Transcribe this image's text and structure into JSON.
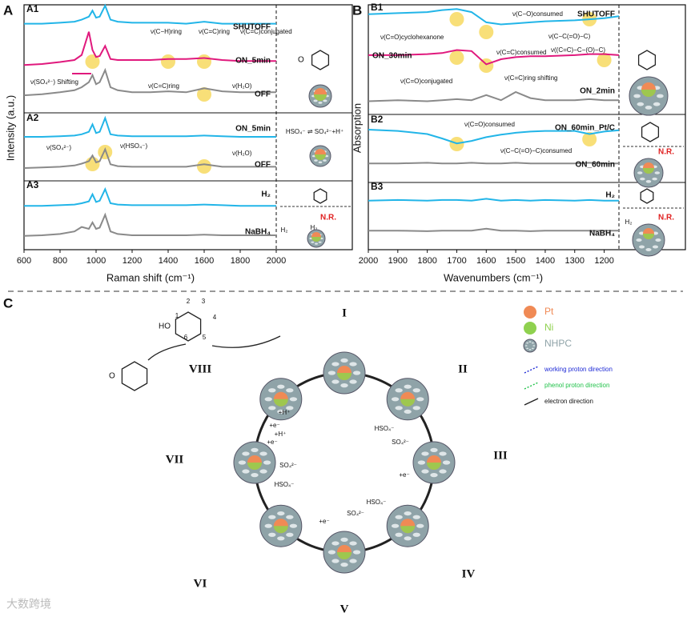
{
  "chart_data": [
    {
      "type": "line",
      "label": "A1",
      "panel": "A",
      "y_label": "Intensity (a.u.)",
      "xlim": [
        600,
        2000
      ],
      "ylim": [
        0,
        10
      ],
      "x": [
        600,
        700,
        800,
        880,
        920,
        960,
        980,
        1000,
        1020,
        1050,
        1080,
        1120,
        1200,
        1300,
        1400,
        1500,
        1600,
        1700,
        1800,
        1900,
        2000
      ],
      "series": [
        {
          "name": "SHUTOFF",
          "color": "#22b5e8",
          "values": [
            8.6,
            8.6,
            8.7,
            8.8,
            9.0,
            9.3,
            9.9,
            9.2,
            9.3,
            10.4,
            9.0,
            8.8,
            8.7,
            8.7,
            8.7,
            8.6,
            8.8,
            8.6,
            8.6,
            8.6,
            8.6
          ]
        },
        {
          "name": "ON_5min",
          "color": "#e0197d",
          "values": [
            4.5,
            4.6,
            4.8,
            5.0,
            5.5,
            7.8,
            6.0,
            5.3,
            5.4,
            6.4,
            5.1,
            5.0,
            5.0,
            5.0,
            5.1,
            5.1,
            5.2,
            5.0,
            4.9,
            4.9,
            4.9
          ]
        },
        {
          "name": "OFF",
          "color": "#8a8a8a",
          "values": [
            1.5,
            1.6,
            1.8,
            2.0,
            2.3,
            2.8,
            3.5,
            2.6,
            2.8,
            4.0,
            2.3,
            2.0,
            1.8,
            1.8,
            1.9,
            1.8,
            2.2,
            1.9,
            1.8,
            1.8,
            1.8
          ]
        }
      ],
      "annotations": [
        "ν(C−H)ring",
        "ν(C=C)ring",
        "ν(C=C)conjugated",
        "ν(SO₄²⁻) Shifting",
        "ν(C=C)ring",
        "ν(H₂O)"
      ],
      "box_labels": []
    },
    {
      "type": "line",
      "label": "A2",
      "panel": "A",
      "xlim": [
        600,
        2000
      ],
      "ylim": [
        0,
        10
      ],
      "x": [
        600,
        700,
        800,
        880,
        920,
        960,
        980,
        1000,
        1020,
        1050,
        1080,
        1120,
        1200,
        1300,
        1400,
        1500,
        1600,
        1700,
        1800,
        1900,
        2000
      ],
      "series": [
        {
          "name": "ON_5min",
          "color": "#22b5e8",
          "values": [
            6.8,
            6.8,
            6.9,
            7.0,
            7.2,
            7.6,
            8.8,
            7.4,
            7.6,
            9.8,
            7.2,
            7.0,
            6.9,
            6.9,
            6.9,
            6.9,
            7.0,
            6.9,
            6.8,
            6.8,
            6.8
          ]
        },
        {
          "name": "OFF",
          "color": "#8a8a8a",
          "values": [
            1.8,
            1.9,
            2.0,
            2.2,
            2.5,
            2.9,
            3.8,
            2.7,
            2.9,
            4.8,
            2.4,
            2.1,
            2.0,
            2.0,
            2.0,
            2.0,
            2.4,
            2.0,
            2.0,
            2.0,
            2.0
          ]
        }
      ],
      "annotations": [
        "ν(SO₄²⁻)",
        "ν(HSO₄⁻)",
        "ν(H₂O)"
      ],
      "box_labels": [
        "HSO₄⁻ ⇌ SO₄²⁻+H⁺"
      ]
    },
    {
      "type": "line",
      "label": "A3",
      "panel": "A",
      "xlim": [
        600,
        2000
      ],
      "ylim": [
        0,
        10
      ],
      "xticks": [
        600,
        800,
        1000,
        1200,
        1400,
        1600,
        1800,
        2000
      ],
      "x_label": "Raman shift (cm⁻¹)",
      "x": [
        600,
        700,
        800,
        880,
        920,
        960,
        980,
        1000,
        1020,
        1050,
        1080,
        1120,
        1200,
        1300,
        1400,
        1500,
        1600,
        1700,
        1800,
        1900,
        2000
      ],
      "series": [
        {
          "name": "H₂",
          "color": "#22b5e8",
          "values": [
            6.6,
            6.6,
            6.7,
            6.8,
            7.0,
            7.3,
            8.4,
            7.2,
            7.4,
            9.2,
            7.0,
            6.8,
            6.7,
            6.7,
            6.7,
            6.7,
            6.8,
            6.7,
            6.6,
            6.6,
            6.6
          ]
        },
        {
          "name": "NaBH₄",
          "color": "#8a8a8a",
          "values": [
            1.9,
            2.0,
            2.2,
            2.6,
            3.3,
            3.0,
            4.0,
            3.0,
            3.2,
            5.2,
            2.6,
            2.2,
            2.0,
            2.0,
            2.0,
            2.0,
            2.1,
            2.0,
            2.0,
            2.0,
            2.0
          ]
        }
      ],
      "annotations": [],
      "box_labels": [
        "N.R.",
        "H₂",
        "H₂"
      ]
    },
    {
      "type": "line",
      "label": "B1",
      "panel": "B",
      "y_label": "Absorption",
      "xlim": [
        2000,
        1150
      ],
      "ylim": [
        0,
        10
      ],
      "x": [
        2000,
        1900,
        1800,
        1750,
        1700,
        1650,
        1600,
        1550,
        1500,
        1450,
        1400,
        1300,
        1250,
        1200,
        1150
      ],
      "series": [
        {
          "name": "SHUTOFF",
          "color": "#22b5e8",
          "values": [
            9.4,
            9.5,
            9.6,
            9.8,
            9.9,
            9.6,
            8.6,
            8.4,
            8.5,
            8.6,
            8.7,
            8.8,
            8.9,
            9.0,
            9.2
          ]
        },
        {
          "name": "ON_30min",
          "color": "#e0197d",
          "values": [
            5.4,
            5.4,
            5.5,
            5.6,
            5.9,
            5.8,
            4.5,
            5.0,
            5.2,
            5.3,
            5.3,
            5.4,
            5.5,
            5.5,
            5.4
          ]
        },
        {
          "name": "ON_2min",
          "color": "#8a8a8a",
          "values": [
            0.9,
            1.0,
            0.9,
            1.0,
            1.1,
            1.0,
            1.5,
            1.0,
            1.8,
            1.2,
            1.0,
            1.0,
            1.1,
            1.0,
            1.0
          ]
        }
      ],
      "annotations": [
        "ν(C−O)consumed",
        "ν(C=O)cyclohexanone",
        "ν(C−C(=O)−C)",
        "ν(C=C)consumed",
        "ν((C=C)−C−(O)−C)",
        "ν(C=O)conjugated",
        "ν(C=C)ring shifting"
      ],
      "box_labels": []
    },
    {
      "type": "line",
      "label": "B2",
      "panel": "B",
      "xlim": [
        2000,
        1150
      ],
      "ylim": [
        0,
        10
      ],
      "x": [
        2000,
        1900,
        1800,
        1750,
        1700,
        1650,
        1600,
        1550,
        1500,
        1450,
        1400,
        1300,
        1250,
        1200,
        1150
      ],
      "series": [
        {
          "name": "ON_60min_Pt/C",
          "color": "#22b5e8",
          "values": [
            8.2,
            8.0,
            7.5,
            6.8,
            6.0,
            6.4,
            7.0,
            7.4,
            7.7,
            7.9,
            8.0,
            8.0,
            7.5,
            7.9,
            8.1
          ]
        },
        {
          "name": "ON_60min",
          "color": "#8a8a8a",
          "values": [
            2.8,
            2.8,
            2.9,
            2.8,
            2.8,
            2.9,
            2.8,
            2.8,
            2.9,
            2.8,
            2.8,
            2.8,
            2.9,
            2.8,
            2.8
          ]
        }
      ],
      "annotations": [
        "ν(C=O)consumed",
        "ν(C−C(=O)−C)consumed"
      ],
      "box_labels": [
        "N.R."
      ]
    },
    {
      "type": "line",
      "label": "B3",
      "panel": "B",
      "xlim": [
        2000,
        1150
      ],
      "ylim": [
        0,
        10
      ],
      "xticks": [
        2000,
        1900,
        1800,
        1700,
        1600,
        1500,
        1400,
        1300,
        1200
      ],
      "x_label": "Wavenumbers (cm⁻¹)",
      "x": [
        2000,
        1900,
        1800,
        1750,
        1700,
        1650,
        1600,
        1550,
        1500,
        1450,
        1400,
        1300,
        1250,
        1200,
        1150
      ],
      "series": [
        {
          "name": "H₂",
          "color": "#22b5e8",
          "values": [
            7.6,
            7.7,
            7.6,
            7.7,
            7.7,
            7.6,
            7.9,
            7.6,
            7.7,
            7.6,
            7.7,
            7.6,
            7.7,
            7.6,
            7.6
          ]
        },
        {
          "name": "NaBH₄",
          "color": "#8a8a8a",
          "values": [
            2.8,
            2.8,
            2.7,
            2.8,
            2.8,
            2.8,
            3.1,
            2.8,
            2.8,
            2.7,
            2.8,
            2.8,
            2.8,
            2.8,
            2.8
          ]
        }
      ],
      "annotations": [],
      "box_labels": [
        "N.R.",
        "H₂",
        "H₂"
      ]
    }
  ],
  "diagram": {
    "label": "C",
    "steps": [
      "I",
      "II",
      "III",
      "IV",
      "V",
      "VI",
      "VII",
      "VIII"
    ],
    "ring_numbers": [
      "1",
      "2",
      "3",
      "4",
      "5",
      "6"
    ],
    "legend": [
      {
        "name": "Pt",
        "color": "#f08a55"
      },
      {
        "name": "Ni",
        "color": "#8fd14f"
      },
      {
        "name": "NHPC",
        "color": "#8fa3a8"
      },
      {
        "name": "working proton direction",
        "color": "#1f2bd6"
      },
      {
        "name": "phenol proton direction",
        "color": "#21c24a"
      },
      {
        "name": "electron direction",
        "color": "#222222"
      }
    ],
    "species": [
      "HSO₄⁻",
      "SO₄²⁻",
      "+e⁻",
      "HSO₄⁻",
      "SO₄²⁻",
      "+e⁻",
      "SO₄²⁻",
      "HSO₄⁻",
      "+e⁻",
      "+e⁻",
      "+H⁺",
      "+H⁺"
    ],
    "watermark": "大数跨境"
  }
}
